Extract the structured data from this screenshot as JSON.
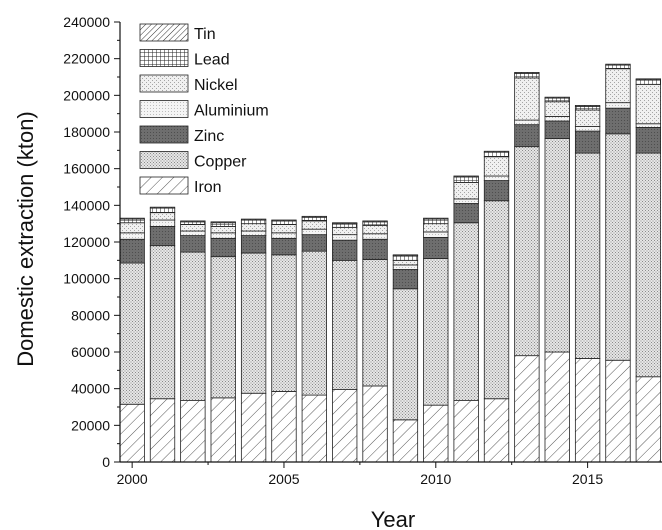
{
  "chart_data": {
    "type": "bar",
    "stacked": true,
    "xlabel": "Year",
    "ylabel": "Domestic extraction (kton)",
    "ylim": [
      0,
      240000
    ],
    "y_ticks": [
      0,
      20000,
      40000,
      60000,
      80000,
      100000,
      120000,
      140000,
      160000,
      180000,
      200000,
      220000,
      240000
    ],
    "y_tick_labels": [
      "0",
      "20000",
      "40000",
      "60000",
      "80000",
      "100000",
      "120000",
      "140000",
      "160000",
      "180000",
      "200000",
      "220000",
      "240000"
    ],
    "x_ticks": [
      2000,
      2005,
      2010,
      2015
    ],
    "x_tick_labels": [
      "2000",
      "2005",
      "2010",
      "2015"
    ],
    "grid": false,
    "legend_position": "top-left",
    "legend_order": [
      "Tin",
      "Lead",
      "Nickel",
      "Aluminium",
      "Zinc",
      "Copper",
      "Iron"
    ],
    "categories": [
      2000,
      2001,
      2002,
      2003,
      2004,
      2005,
      2006,
      2007,
      2008,
      2009,
      2010,
      2011,
      2012,
      2013,
      2014,
      2015,
      2016,
      2017
    ],
    "series": [
      {
        "name": "Iron",
        "pattern": "diag-wide",
        "values": [
          31500,
          34500,
          33500,
          35000,
          37500,
          38500,
          36500,
          39500,
          41500,
          23000,
          31000,
          33500,
          34500,
          58000,
          60000,
          56500,
          55500,
          46500
        ]
      },
      {
        "name": "Copper",
        "pattern": "dots-fine",
        "values": [
          77000,
          83500,
          81000,
          77000,
          76500,
          74500,
          78500,
          70500,
          69000,
          71500,
          80000,
          97000,
          108000,
          114000,
          116500,
          112000,
          123500,
          122000
        ]
      },
      {
        "name": "Zinc",
        "pattern": "dark-grey",
        "values": [
          13000,
          10500,
          9000,
          10000,
          9500,
          9000,
          9000,
          11000,
          11000,
          10500,
          11500,
          10500,
          11000,
          12000,
          9500,
          12000,
          14000,
          14000
        ]
      },
      {
        "name": "Aluminium",
        "pattern": "dots-light",
        "values": [
          3500,
          3500,
          2500,
          3000,
          2500,
          3000,
          3000,
          3000,
          3000,
          2500,
          3000,
          2500,
          2500,
          2500,
          2500,
          2500,
          3000,
          2000
        ]
      },
      {
        "name": "Nickel",
        "pattern": "dots-sparse",
        "values": [
          5500,
          4000,
          3500,
          3500,
          4000,
          4500,
          4500,
          4000,
          4500,
          2500,
          4500,
          9000,
          10500,
          23000,
          8000,
          9000,
          18500,
          21500
        ]
      },
      {
        "name": "Lead",
        "pattern": "crosshatch",
        "values": [
          2000,
          2500,
          1500,
          2000,
          2000,
          2000,
          2000,
          2000,
          2000,
          2500,
          2500,
          3000,
          2500,
          2500,
          2000,
          2000,
          2000,
          2500
        ]
      },
      {
        "name": "Tin",
        "pattern": "diag-narrow",
        "values": [
          500,
          500,
          500,
          500,
          500,
          500,
          500,
          500,
          500,
          500,
          500,
          500,
          500,
          500,
          500,
          500,
          500,
          500
        ]
      }
    ]
  }
}
